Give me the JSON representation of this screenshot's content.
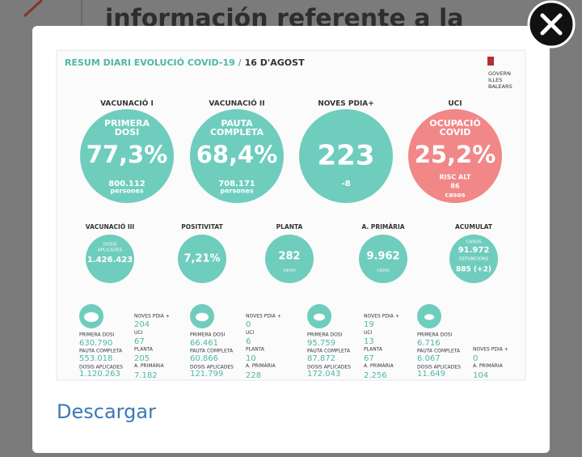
{
  "background": {
    "heading": "información referente a la"
  },
  "infographic": {
    "title": "RESUM DIARI EVOLUCIÓ COVID-19 /",
    "date": "16 D'AGOST",
    "logo": [
      "GOVERN",
      "ILLES",
      "BALEARS"
    ],
    "main": [
      {
        "label": "VACUNACIÓ I",
        "top": [
          "PRIMERA",
          "DOSI"
        ],
        "value": "77,3%",
        "bottom": [
          "800.112",
          "persones"
        ]
      },
      {
        "label": "VACUNACIÓ II",
        "top": [
          "PAUTA",
          "COMPLETA"
        ],
        "value": "68,4%",
        "bottom": [
          "708.171",
          "persones"
        ]
      },
      {
        "label": "NOVES PDIA+",
        "top": [],
        "value": "223",
        "bottom": [
          "-8"
        ]
      },
      {
        "label": "UCI",
        "top": [
          "OCUPACIÓ",
          "COVID"
        ],
        "value": "25,2%",
        "bottom": [
          "RISC ALT",
          "86",
          "casos"
        ]
      }
    ],
    "secondary": [
      {
        "label": "VACUNACIÓ III",
        "top": [
          "DOSIS",
          "APLICADES"
        ],
        "value": "1.426.423",
        "bottom": []
      },
      {
        "label": "POSITIVITAT",
        "top": [],
        "value": "7,21%",
        "bottom": []
      },
      {
        "label": "PLANTA",
        "top": [],
        "value": "282",
        "bottom": [
          "casos"
        ]
      },
      {
        "label": "A. PRIMÀRIA",
        "top": [],
        "value": "9.962",
        "bottom": [
          "casos"
        ]
      },
      {
        "label": "ACUMULAT",
        "top": [
          "CASOS"
        ],
        "value": "91.972",
        "bottom": [
          "DEFUNCIONS",
          "885 (+2)"
        ]
      }
    ],
    "islands": [
      {
        "left": [
          {
            "label": "PRIMERA DOSI",
            "value": "630.790"
          },
          {
            "label": "PAUTA COMPLETA",
            "value": "553.018"
          },
          {
            "label": "DOSIS APLICADES",
            "value": "1.120.263"
          }
        ],
        "right": [
          {
            "label": "NOVES PDIA +",
            "value": "204"
          },
          {
            "label": "UCI",
            "value": "67"
          },
          {
            "label": "PLANTA",
            "value": "205"
          },
          {
            "label": "A. PRIMÀRIA",
            "value": "7.182"
          }
        ]
      },
      {
        "left": [
          {
            "label": "PRIMERA DOSI",
            "value": "66.461"
          },
          {
            "label": "PAUTA COMPLETA",
            "value": "60.866"
          },
          {
            "label": "DOSIS APLICADES",
            "value": "121.799"
          }
        ],
        "right": [
          {
            "label": "NOVES PDIA +",
            "value": "0"
          },
          {
            "label": "UCI",
            "value": "6"
          },
          {
            "label": "PLANTA",
            "value": "10"
          },
          {
            "label": "A. PRIMÀRIA",
            "value": "228"
          }
        ]
      },
      {
        "left": [
          {
            "label": "PRIMERA DOSI",
            "value": "95.759"
          },
          {
            "label": "PAUTA COMPLETA",
            "value": "87.872"
          },
          {
            "label": "DOSIS APLICADES",
            "value": "172.043"
          }
        ],
        "right": [
          {
            "label": "NOVES PDIA +",
            "value": "19"
          },
          {
            "label": "UCI",
            "value": "13"
          },
          {
            "label": "PLANTA",
            "value": "67"
          },
          {
            "label": "A. PRIMÀRIA",
            "value": "2.256"
          }
        ]
      },
      {
        "left": [
          {
            "label": "PRIMERA DOSI",
            "value": "6.716"
          },
          {
            "label": "PAUTA COMPLETA",
            "value": "6.067"
          },
          {
            "label": "DOSIS APLICADES",
            "value": "11.649"
          }
        ],
        "right": [
          {
            "label": "NOVES PDIA +",
            "value": "0"
          },
          {
            "label": "A. PRIMÀRIA",
            "value": "104"
          }
        ]
      }
    ]
  },
  "download": "Descargar"
}
